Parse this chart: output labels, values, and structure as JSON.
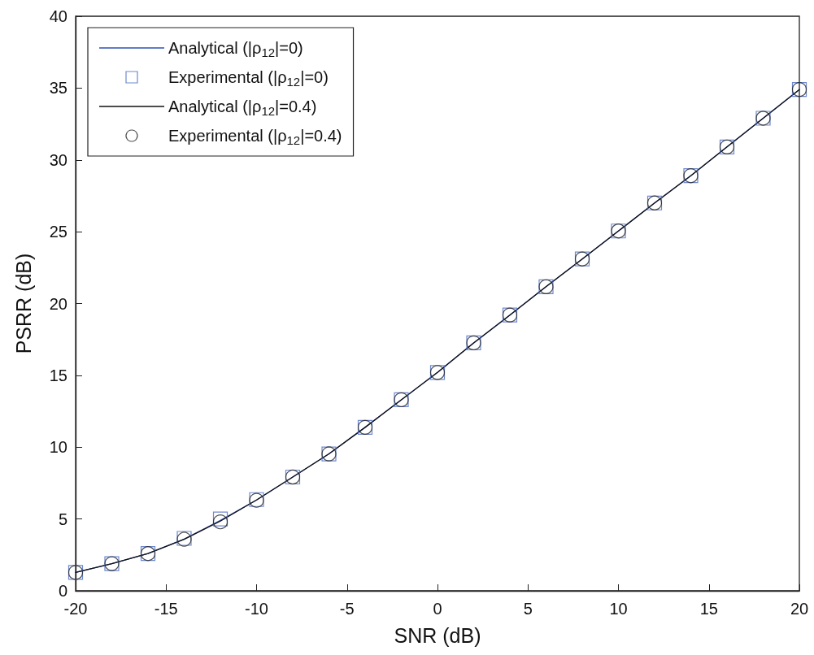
{
  "chart_data": {
    "type": "line",
    "xlabel": "SNR (dB)",
    "ylabel": "PSRR (dB)",
    "x": [
      -20,
      -18,
      -16,
      -14,
      -12,
      -10,
      -8,
      -6,
      -4,
      -2,
      0,
      2,
      4,
      6,
      8,
      10,
      12,
      14,
      16,
      18,
      20
    ],
    "xlim": [
      -20,
      20
    ],
    "xticks": [
      -20,
      -15,
      -10,
      -5,
      0,
      5,
      10,
      15,
      20
    ],
    "ylim": [
      0,
      40
    ],
    "yticks": [
      0,
      5,
      10,
      15,
      20,
      25,
      30,
      35,
      40
    ],
    "grid": false,
    "legend": "top left",
    "series": [
      {
        "name": "Analytical (|ρ$_{12}$|=0)",
        "marker": "none",
        "line_style": "solid",
        "color": "#2f4fb5",
        "values": [
          1.28,
          1.89,
          2.6,
          3.6,
          4.9,
          6.32,
          7.92,
          9.53,
          11.38,
          13.3,
          15.2,
          17.26,
          19.2,
          21.17,
          23.1,
          25.05,
          27.0,
          28.9,
          30.9,
          32.9,
          34.9
        ]
      },
      {
        "name": "Experimental (|ρ$_{12}$|=0)",
        "type": "scatter",
        "marker": "square",
        "color": "#4a6bc4",
        "values": [
          1.28,
          1.89,
          2.6,
          3.65,
          5.0,
          6.35,
          7.92,
          9.53,
          11.38,
          13.3,
          15.2,
          17.26,
          19.2,
          21.17,
          23.1,
          25.05,
          27.0,
          28.9,
          30.9,
          32.9,
          34.9
        ]
      },
      {
        "name": "Analytical (|ρ$_{12}$|=0.4)",
        "marker": "none",
        "line_style": "solid",
        "color": "#111111",
        "values": [
          1.28,
          1.89,
          2.59,
          3.59,
          4.85,
          6.32,
          7.92,
          9.53,
          11.38,
          13.3,
          15.2,
          17.26,
          19.2,
          21.17,
          23.1,
          25.05,
          27.0,
          28.9,
          30.9,
          32.9,
          34.9
        ]
      },
      {
        "name": "Experimental (|ρ$_{12}$|=0.4)",
        "type": "scatter",
        "marker": "circle",
        "color": "#222222",
        "values": [
          1.28,
          1.89,
          2.59,
          3.59,
          4.8,
          6.3,
          7.92,
          9.53,
          11.38,
          13.3,
          15.2,
          17.26,
          19.2,
          21.17,
          23.1,
          25.05,
          27.0,
          28.9,
          30.9,
          32.9,
          34.9
        ]
      }
    ]
  }
}
